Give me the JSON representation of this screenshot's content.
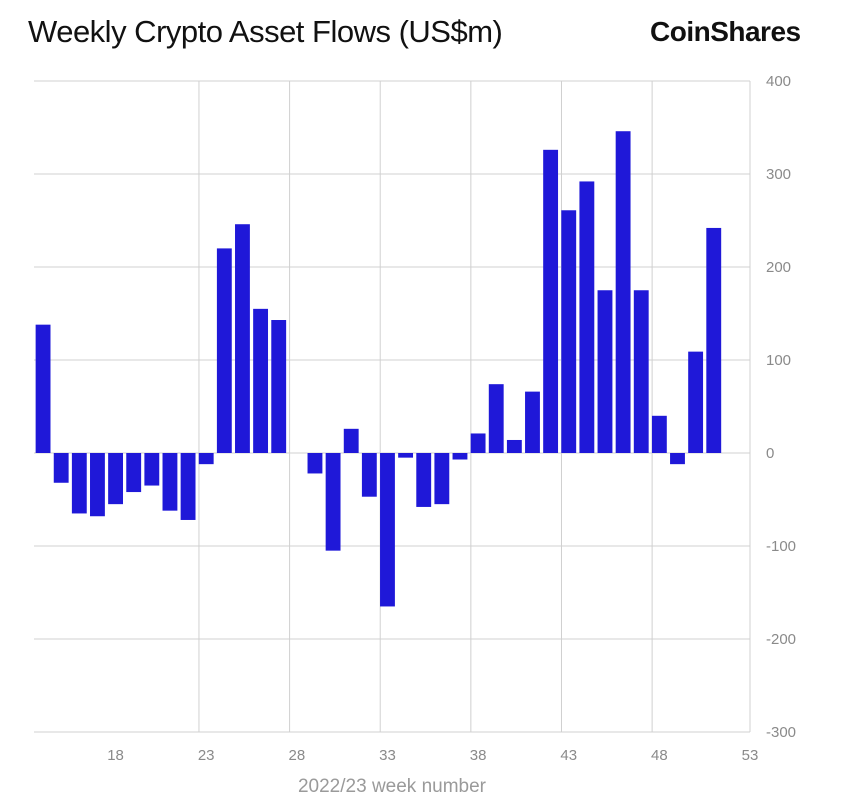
{
  "header": {
    "title": "Weekly Crypto Asset Flows (US$m)",
    "brand": "CoinShares"
  },
  "colors": {
    "bar": "#1f18d8",
    "grid": "#d0d0d0",
    "tick": "#8a8a8a"
  },
  "chart_data": {
    "type": "bar",
    "xlabel": "2022/23 week number",
    "ylabel": "",
    "ylim": [
      -300,
      400
    ],
    "yticks": [
      400,
      300,
      200,
      100,
      0,
      -100,
      -200,
      -300
    ],
    "xticks": [
      18,
      23,
      28,
      33,
      38,
      43,
      48,
      53
    ],
    "xlim": [
      13.5,
      53
    ],
    "grid": true,
    "y_axis_position": "right",
    "series": [
      {
        "x": [
          14,
          15,
          16,
          17,
          18,
          19,
          20,
          21,
          22,
          23,
          24,
          25,
          26,
          27,
          28,
          29,
          30,
          31,
          32,
          33,
          34,
          35,
          36,
          37,
          38,
          39,
          40,
          41,
          42,
          43,
          44,
          45,
          46,
          47,
          48,
          49,
          50,
          51,
          52
        ],
        "values": [
          138,
          -32,
          -65,
          -68,
          -55,
          -42,
          -35,
          -62,
          -72,
          -12,
          220,
          246,
          155,
          143,
          0,
          -22,
          -105,
          26,
          -47,
          -165,
          -5,
          -58,
          -55,
          -7,
          21,
          74,
          14,
          66,
          326,
          261,
          292,
          175,
          346,
          175,
          40,
          -12,
          109,
          242,
          0
        ]
      }
    ]
  }
}
